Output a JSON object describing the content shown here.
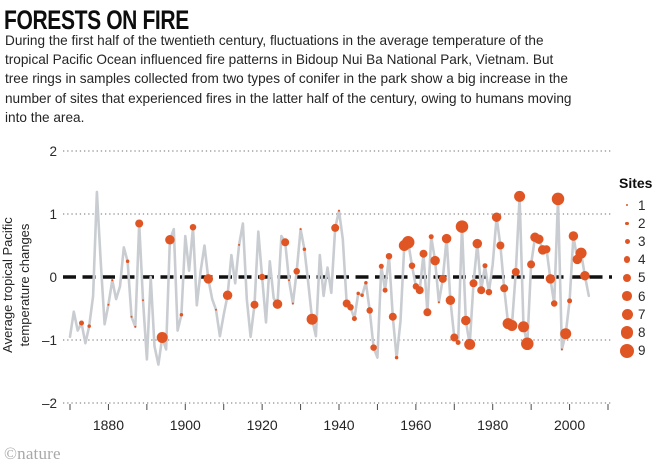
{
  "header": {
    "title": "FORESTS ON FIRE",
    "description": "During the first half of the twentieth century, fluctuations in the average temperature of the tropical Pacific Ocean influenced fire patterns in Bidoup Nui Ba National Park, Vietnam. But tree rings in samples collected from two types of conifer in the park show a big increase in the number of sites that experienced fires in the latter half of the century, owing to humans moving into the area."
  },
  "footer": {
    "credit": "©nature"
  },
  "chart_data": {
    "type": "line",
    "title": "",
    "xlabel": "",
    "ylabel": "Average tropical Pacific temperature changes",
    "ylabel_lines": [
      "Average tropical Pacific",
      "temperature changes"
    ],
    "xlim": [
      1868,
      2012
    ],
    "ylim": [
      -2,
      2
    ],
    "grid": "dotted horizontal lines at -2,-1,1,2; heavy dashed black line at 0",
    "legend_position": "right",
    "yticks": [
      {
        "value": 2,
        "label": "2"
      },
      {
        "value": 1,
        "label": "1"
      },
      {
        "value": 0,
        "label": "0"
      },
      {
        "value": -1,
        "label": "–1"
      },
      {
        "value": -2,
        "label": "–2"
      }
    ],
    "xticks": [
      {
        "value": 1880,
        "label": "1880"
      },
      {
        "value": 1900,
        "label": "1900"
      },
      {
        "value": 1920,
        "label": "1920"
      },
      {
        "value": 1940,
        "label": "1940"
      },
      {
        "value": 1960,
        "label": "1960"
      },
      {
        "value": 1980,
        "label": "1980"
      },
      {
        "value": 2000,
        "label": "2000"
      }
    ],
    "minor_xtick_start": 1870,
    "minor_xtick_end": 2010,
    "minor_xtick_step": 10,
    "legend": {
      "title": "Sites",
      "sizes": [
        1,
        2,
        3,
        4,
        5,
        6,
        7,
        8,
        9
      ]
    },
    "colors": {
      "line": "#c9cdd1",
      "dot": "#e05524",
      "zero_line": "#111111",
      "grid": "#8c8c8c",
      "axis_text": "#2a2a2a"
    },
    "series": [
      {
        "name": "Average tropical Pacific temperature change (dots sized by number of sites with fire)",
        "points_format": [
          "year",
          "temperature_change",
          "sites_with_fire"
        ],
        "points": [
          [
            1870,
            -0.95,
            0
          ],
          [
            1871,
            -0.55,
            0
          ],
          [
            1872,
            -0.85,
            0
          ],
          [
            1873,
            -0.73,
            3
          ],
          [
            1874,
            -1.05,
            0
          ],
          [
            1875,
            -0.78,
            2
          ],
          [
            1876,
            -0.3,
            0
          ],
          [
            1877,
            1.35,
            0
          ],
          [
            1878,
            0.25,
            0
          ],
          [
            1879,
            -0.75,
            0
          ],
          [
            1880,
            -0.44,
            1
          ],
          [
            1881,
            -0.05,
            1
          ],
          [
            1882,
            -0.35,
            0
          ],
          [
            1883,
            -0.15,
            0
          ],
          [
            1884,
            0.47,
            0
          ],
          [
            1885,
            0.25,
            2
          ],
          [
            1886,
            -0.63,
            1
          ],
          [
            1887,
            -0.79,
            1
          ],
          [
            1888,
            0.85,
            5
          ],
          [
            1889,
            -0.37,
            1
          ],
          [
            1890,
            -1.31,
            0
          ],
          [
            1891,
            0.0,
            0
          ],
          [
            1892,
            -1.1,
            0
          ],
          [
            1893,
            -1.39,
            0
          ],
          [
            1894,
            -0.96,
            7
          ],
          [
            1895,
            -1.15,
            0
          ],
          [
            1896,
            0.59,
            6
          ],
          [
            1897,
            0.76,
            0
          ],
          [
            1898,
            -0.85,
            0
          ],
          [
            1899,
            -0.6,
            2
          ],
          [
            1900,
            0.65,
            0
          ],
          [
            1901,
            0.1,
            0
          ],
          [
            1902,
            0.79,
            4
          ],
          [
            1903,
            -0.45,
            0
          ],
          [
            1904,
            0.1,
            0
          ],
          [
            1905,
            0.5,
            0
          ],
          [
            1906,
            -0.03,
            6
          ],
          [
            1907,
            -0.35,
            0
          ],
          [
            1908,
            -0.52,
            1
          ],
          [
            1909,
            -0.94,
            0
          ],
          [
            1910,
            -0.6,
            0
          ],
          [
            1911,
            -0.29,
            6
          ],
          [
            1912,
            0.35,
            0
          ],
          [
            1913,
            -0.1,
            0
          ],
          [
            1914,
            0.51,
            1
          ],
          [
            1915,
            0.85,
            0
          ],
          [
            1916,
            -0.35,
            0
          ],
          [
            1917,
            -0.95,
            0
          ],
          [
            1918,
            -0.44,
            5
          ],
          [
            1919,
            0.72,
            0
          ],
          [
            1920,
            0.0,
            4
          ],
          [
            1921,
            -0.72,
            0
          ],
          [
            1922,
            0.25,
            0
          ],
          [
            1923,
            -0.34,
            0
          ],
          [
            1924,
            -0.43,
            6
          ],
          [
            1925,
            0.65,
            0
          ],
          [
            1926,
            0.55,
            5
          ],
          [
            1927,
            -0.05,
            1
          ],
          [
            1928,
            -0.42,
            1
          ],
          [
            1929,
            0.09,
            4
          ],
          [
            1930,
            0.76,
            1
          ],
          [
            1931,
            0.44,
            2
          ],
          [
            1932,
            -0.1,
            0
          ],
          [
            1933,
            -0.67,
            7
          ],
          [
            1934,
            -0.94,
            0
          ],
          [
            1935,
            0.35,
            0
          ],
          [
            1936,
            -0.3,
            0
          ],
          [
            1937,
            0.15,
            0
          ],
          [
            1938,
            -0.25,
            0
          ],
          [
            1939,
            0.78,
            5
          ],
          [
            1940,
            1.05,
            1
          ],
          [
            1941,
            0.6,
            0
          ],
          [
            1942,
            -0.42,
            5
          ],
          [
            1943,
            -0.48,
            4
          ],
          [
            1944,
            -0.66,
            3
          ],
          [
            1945,
            -0.26,
            2
          ],
          [
            1946,
            -0.29,
            2
          ],
          [
            1947,
            -0.09,
            2
          ],
          [
            1948,
            -0.53,
            4
          ],
          [
            1949,
            -1.12,
            4
          ],
          [
            1950,
            -1.28,
            0
          ],
          [
            1951,
            0.17,
            3
          ],
          [
            1952,
            -0.21,
            3
          ],
          [
            1953,
            0.33,
            4
          ],
          [
            1954,
            -0.63,
            5
          ],
          [
            1955,
            -1.28,
            2
          ],
          [
            1956,
            -0.7,
            0
          ],
          [
            1957,
            0.5,
            7
          ],
          [
            1958,
            0.55,
            8
          ],
          [
            1959,
            0.18,
            4
          ],
          [
            1960,
            -0.15,
            4
          ],
          [
            1961,
            -0.21,
            5
          ],
          [
            1962,
            0.37,
            5
          ],
          [
            1963,
            -0.56,
            5
          ],
          [
            1964,
            0.64,
            3
          ],
          [
            1965,
            0.26,
            6
          ],
          [
            1966,
            -0.4,
            1
          ],
          [
            1967,
            -0.03,
            5
          ],
          [
            1968,
            0.61,
            6
          ],
          [
            1969,
            -0.37,
            6
          ],
          [
            1970,
            -0.96,
            5
          ],
          [
            1971,
            -1.04,
            3
          ],
          [
            1972,
            0.8,
            8
          ],
          [
            1973,
            -0.69,
            6
          ],
          [
            1974,
            -1.07,
            7
          ],
          [
            1975,
            -0.1,
            5
          ],
          [
            1976,
            0.53,
            6
          ],
          [
            1977,
            -0.21,
            5
          ],
          [
            1978,
            0.18,
            3
          ],
          [
            1979,
            -0.24,
            4
          ],
          [
            1980,
            0.2,
            0
          ],
          [
            1981,
            0.95,
            6
          ],
          [
            1982,
            0.5,
            5
          ],
          [
            1983,
            -0.18,
            5
          ],
          [
            1984,
            -0.74,
            7
          ],
          [
            1985,
            -0.77,
            7
          ],
          [
            1986,
            0.08,
            5
          ],
          [
            1987,
            1.28,
            7
          ],
          [
            1988,
            -0.79,
            7
          ],
          [
            1989,
            -1.06,
            8
          ],
          [
            1990,
            0.2,
            5
          ],
          [
            1991,
            0.63,
            6
          ],
          [
            1992,
            0.6,
            6
          ],
          [
            1993,
            0.43,
            6
          ],
          [
            1994,
            0.44,
            5
          ],
          [
            1995,
            -0.03,
            6
          ],
          [
            1996,
            -0.42,
            4
          ],
          [
            1997,
            1.24,
            8
          ],
          [
            1998,
            -1.15,
            1
          ],
          [
            1999,
            -0.9,
            7
          ],
          [
            2000,
            -0.38,
            3
          ],
          [
            2001,
            0.65,
            6
          ],
          [
            2002,
            0.28,
            6
          ],
          [
            2003,
            0.38,
            7
          ],
          [
            2004,
            0.02,
            6
          ],
          [
            2005,
            -0.3,
            0
          ]
        ]
      }
    ]
  }
}
